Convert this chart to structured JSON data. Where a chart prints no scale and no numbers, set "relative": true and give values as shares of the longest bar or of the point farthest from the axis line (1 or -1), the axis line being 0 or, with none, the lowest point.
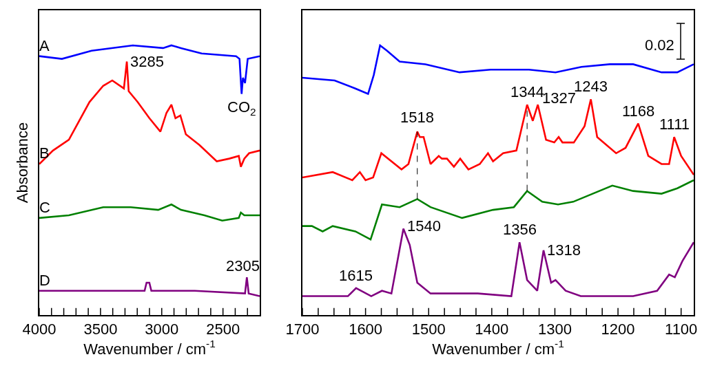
{
  "chart_data": [
    {
      "type": "line",
      "relative": true,
      "tick_labels": "x",
      "xlabel": "Wavenumber / cm$^{-1}$",
      "ylabel": "Absorbance",
      "xlim": [
        4000,
        2200
      ],
      "xticks": [
        4000,
        {
          "value": 3900,
          "label": null
        },
        {
          "value": 3800,
          "label": null
        },
        {
          "value": 3700,
          "label": null
        },
        {
          "value": 3600,
          "label": null
        },
        3500,
        {
          "value": 3400,
          "label": null
        },
        {
          "value": 3300,
          "label": null
        },
        {
          "value": 3200,
          "label": null
        },
        {
          "value": 3100,
          "label": null
        },
        3000,
        {
          "value": 2900,
          "label": null
        },
        {
          "value": 2800,
          "label": null
        },
        {
          "value": 2700,
          "label": null
        },
        {
          "value": 2600,
          "label": null
        },
        2500,
        {
          "value": 2400,
          "label": null
        },
        {
          "value": 2300,
          "label": null
        }
      ],
      "series": [
        {
          "name": "A",
          "color": "#0000ff",
          "x": [
            4000,
            3815,
            3573,
            3236,
            2989,
            2921,
            2843,
            2674,
            2393,
            2365,
            2348,
            2337,
            2320,
            2298,
            2200
          ],
          "values": [
            0.96,
            0.95,
            0.98,
            1.0,
            0.99,
            1.0,
            0.99,
            0.97,
            0.96,
            0.95,
            0.82,
            0.88,
            0.86,
            0.95,
            0.96
          ]
        },
        {
          "name": "B",
          "color": "#ff0000",
          "x": [
            4000,
            3888,
            3758,
            3590,
            3478,
            3404,
            3309,
            3285,
            3270,
            3197,
            3101,
            3011,
            2961,
            2921,
            2888,
            2848,
            2803,
            2691,
            2551,
            2449,
            2371,
            2354,
            2326,
            2287,
            2200
          ],
          "values": [
            0.56,
            0.61,
            0.65,
            0.79,
            0.85,
            0.87,
            0.84,
            0.94,
            0.83,
            0.79,
            0.73,
            0.68,
            0.75,
            0.78,
            0.73,
            0.74,
            0.67,
            0.63,
            0.57,
            0.58,
            0.59,
            0.55,
            0.58,
            0.6,
            0.61
          ]
        },
        {
          "name": "C",
          "color": "#008000",
          "x": [
            4000,
            3758,
            3478,
            3253,
            3029,
            2921,
            2843,
            2652,
            2506,
            2371,
            2354,
            2326,
            2298,
            2200
          ],
          "values": [
            0.36,
            0.37,
            0.4,
            0.4,
            0.39,
            0.41,
            0.39,
            0.37,
            0.35,
            0.36,
            0.38,
            0.37,
            0.37,
            0.37
          ]
        },
        {
          "name": "D",
          "color": "#800080",
          "x": [
            4000,
            3376,
            3140,
            3124,
            3101,
            3085,
            3029,
            3011,
            2888,
            2730,
            2320,
            2305,
            2290,
            2200
          ],
          "values": [
            0.09,
            0.09,
            0.09,
            0.12,
            0.12,
            0.09,
            0.09,
            0.09,
            0.09,
            0.09,
            0.08,
            0.14,
            0.08,
            0.07
          ]
        }
      ],
      "annotations": [
        {
          "text": "3285",
          "x": 3285,
          "y": 0.94
        },
        {
          "text": "CO$_{2}$",
          "x": 2345,
          "y": 0.82
        },
        {
          "text": "2305",
          "x": 2305,
          "y": 0.14
        }
      ]
    },
    {
      "type": "line",
      "relative": true,
      "tick_labels": "x",
      "xlabel": "Wavenumber / cm$^{-1}$",
      "xlim": [
        1700,
        1080
      ],
      "xticks": [
        1700,
        {
          "value": 1675,
          "label": null
        },
        {
          "value": 1650,
          "label": null
        },
        {
          "value": 1625,
          "label": null
        },
        1600,
        {
          "value": 1575,
          "label": null
        },
        {
          "value": 1550,
          "label": null
        },
        {
          "value": 1525,
          "label": null
        },
        1500,
        {
          "value": 1475,
          "label": null
        },
        {
          "value": 1450,
          "label": null
        },
        {
          "value": 1425,
          "label": null
        },
        1400,
        {
          "value": 1375,
          "label": null
        },
        {
          "value": 1350,
          "label": null
        },
        {
          "value": 1325,
          "label": null
        },
        1300,
        {
          "value": 1275,
          "label": null
        },
        {
          "value": 1250,
          "label": null
        },
        {
          "value": 1225,
          "label": null
        },
        1200,
        {
          "value": 1175,
          "label": null
        },
        {
          "value": 1150,
          "label": null
        },
        {
          "value": 1125,
          "label": null
        },
        1100
      ],
      "series": [
        {
          "color": "#0000ff",
          "x": [
            1700,
            1649,
            1616,
            1596,
            1587,
            1577,
            1566,
            1546,
            1505,
            1451,
            1402,
            1341,
            1299,
            1258,
            1213,
            1176,
            1131,
            1106,
            1080
          ],
          "values": [
            0.88,
            0.87,
            0.84,
            0.82,
            0.89,
            1.0,
            0.98,
            0.94,
            0.93,
            0.9,
            0.91,
            0.91,
            0.9,
            0.92,
            0.93,
            0.93,
            0.9,
            0.9,
            0.93
          ]
        },
        {
          "color": "#ff0000",
          "x": [
            1700,
            1652,
            1621,
            1609,
            1600,
            1588,
            1575,
            1543,
            1532,
            1518,
            1514,
            1508,
            1497,
            1484,
            1479,
            1471,
            1460,
            1450,
            1437,
            1419,
            1406,
            1398,
            1382,
            1361,
            1344,
            1335,
            1327,
            1314,
            1301,
            1294,
            1288,
            1270,
            1253,
            1243,
            1233,
            1203,
            1188,
            1168,
            1152,
            1131,
            1119,
            1111,
            1100,
            1080
          ],
          "values": [
            0.51,
            0.53,
            0.5,
            0.53,
            0.5,
            0.51,
            0.6,
            0.54,
            0.56,
            0.68,
            0.66,
            0.66,
            0.56,
            0.59,
            0.58,
            0.58,
            0.55,
            0.58,
            0.54,
            0.56,
            0.6,
            0.57,
            0.6,
            0.61,
            0.78,
            0.72,
            0.78,
            0.65,
            0.64,
            0.66,
            0.64,
            0.64,
            0.7,
            0.8,
            0.66,
            0.6,
            0.62,
            0.71,
            0.59,
            0.56,
            0.56,
            0.66,
            0.59,
            0.52
          ]
        },
        {
          "color": "#008000",
          "x": [
            1700,
            1685,
            1668,
            1652,
            1616,
            1592,
            1574,
            1546,
            1518,
            1497,
            1447,
            1398,
            1365,
            1344,
            1320,
            1295,
            1271,
            1209,
            1176,
            1131,
            1106,
            1080
          ],
          "values": [
            0.33,
            0.33,
            0.31,
            0.33,
            0.31,
            0.28,
            0.41,
            0.4,
            0.43,
            0.4,
            0.36,
            0.39,
            0.4,
            0.46,
            0.42,
            0.41,
            0.42,
            0.48,
            0.46,
            0.45,
            0.47,
            0.5
          ]
        },
        {
          "color": "#800080",
          "x": [
            1700,
            1628,
            1615,
            1591,
            1574,
            1559,
            1540,
            1530,
            1518,
            1497,
            1465,
            1422,
            1369,
            1356,
            1344,
            1328,
            1318,
            1306,
            1299,
            1283,
            1259,
            1176,
            1138,
            1119,
            1110,
            1098,
            1080
          ],
          "values": [
            0.07,
            0.07,
            0.1,
            0.07,
            0.09,
            0.08,
            0.32,
            0.26,
            0.12,
            0.08,
            0.08,
            0.08,
            0.07,
            0.27,
            0.13,
            0.09,
            0.24,
            0.12,
            0.13,
            0.09,
            0.07,
            0.07,
            0.09,
            0.15,
            0.14,
            0.2,
            0.27
          ]
        }
      ],
      "ref_lines": [
        {
          "axis": "x",
          "value": 1518,
          "line_style": "dashed",
          "color": "#000000"
        },
        {
          "axis": "x",
          "value": 1344,
          "line_style": "dashed",
          "color": "#000000"
        }
      ],
      "annotations": [
        "0.02",
        {
          "text": "1518",
          "x": 1518,
          "y": 0.68
        },
        {
          "text": "1344",
          "x": 1344,
          "y": 0.78
        },
        {
          "text": "1327",
          "x": 1327,
          "y": 0.78
        },
        {
          "text": "1243",
          "x": 1243,
          "y": 0.8
        },
        {
          "text": "1168",
          "x": 1168,
          "y": 0.71
        },
        {
          "text": "1111",
          "x": 1111,
          "y": 0.66
        },
        {
          "text": "1615",
          "x": 1615,
          "y": 0.1
        },
        {
          "text": "1540",
          "x": 1540,
          "y": 0.32
        },
        {
          "text": "1356",
          "x": 1356,
          "y": 0.27
        },
        {
          "text": "1318",
          "x": 1318,
          "y": 0.24
        }
      ]
    }
  ]
}
